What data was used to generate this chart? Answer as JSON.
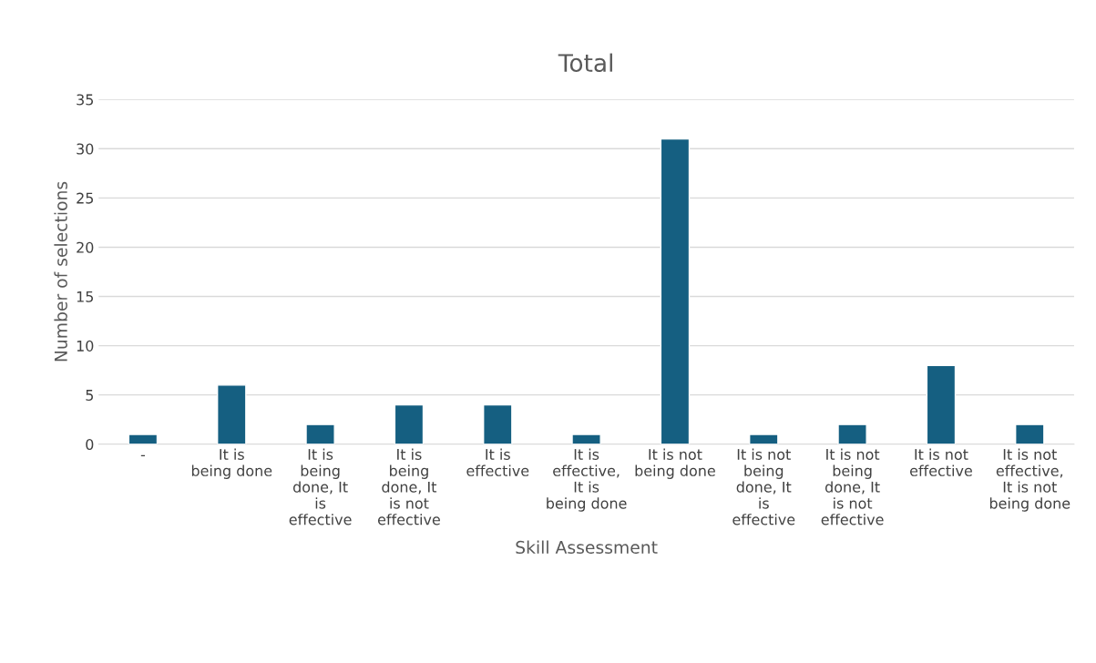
{
  "chart_data": {
    "type": "bar",
    "title": "Total",
    "xlabel": "Skill Assessment",
    "ylabel": "Number of selections",
    "categories": [
      "-",
      "It is being done",
      "It is being done, It is effective",
      "It is being done, It is not effective",
      "It is effective",
      "It is effective, It is being done",
      "It is not being done",
      "It is not being done, It is effective",
      "It is not being done, It is not effective",
      "It is not effective",
      "It is not effective, It is not being done"
    ],
    "values": [
      1,
      6,
      2,
      4,
      4,
      1,
      31,
      1,
      2,
      8,
      2
    ],
    "color": "#155f81",
    "ylim": [
      0,
      35
    ],
    "yticks": [
      0,
      5,
      10,
      15,
      20,
      25,
      30,
      35
    ],
    "grid": "y",
    "legend": false
  }
}
